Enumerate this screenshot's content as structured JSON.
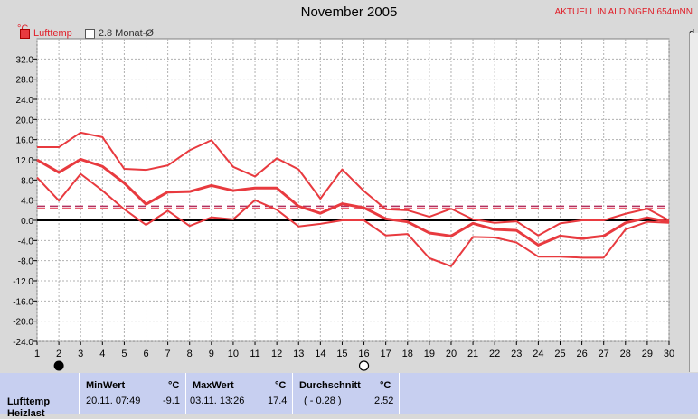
{
  "header": {
    "title": "November 2005",
    "station": "AKTUELL IN ALDINGEN 654mNN",
    "y_unit": "°C",
    "right_clip": "d"
  },
  "legend": {
    "item1": "Lufttemp",
    "item2": "2.8 Monat-Ø"
  },
  "colors": {
    "series": "#e83a3f",
    "avg_line1": "#b23060",
    "avg_line2": "#e86070",
    "zero_line": "#000000",
    "grid": "#b0b0b0",
    "panel": "#c7cff0"
  },
  "chart_data": {
    "type": "line",
    "xlim": [
      1,
      30
    ],
    "ylim": [
      -24,
      36
    ],
    "x_ticks": [
      "1",
      "2",
      "3",
      "4",
      "5",
      "6",
      "7",
      "8",
      "9",
      "10",
      "11",
      "12",
      "13",
      "14",
      "15",
      "16",
      "17",
      "18",
      "19",
      "20",
      "21",
      "22",
      "23",
      "24",
      "25",
      "26",
      "27",
      "28",
      "29",
      "30"
    ],
    "y_ticks": [
      "32.0",
      "28.0",
      "24.0",
      "20.0",
      "16.0",
      "12.0",
      "8.0",
      "4.0",
      "0.0",
      "-4.0",
      "-8.0",
      "-12.0",
      "-16.0",
      "-20.0",
      "-24.0"
    ],
    "y_tick_values": [
      32,
      28,
      24,
      20,
      16,
      12,
      8,
      4,
      0,
      -4,
      -8,
      -12,
      -16,
      -20,
      -24
    ],
    "moon_markers": [
      {
        "day": 2,
        "kind": "new-moon"
      },
      {
        "day": 16,
        "kind": "full-moon"
      }
    ],
    "reference_lines": [
      {
        "y": 2.8,
        "style": "dashed"
      },
      {
        "y": 2.4,
        "style": "dashed"
      },
      {
        "y": 0,
        "style": "solid"
      }
    ],
    "series": [
      {
        "role": "max",
        "x": [
          1,
          2,
          3,
          4,
          5,
          6,
          7,
          8,
          9,
          10,
          11,
          12,
          13,
          14,
          15,
          16,
          17,
          18,
          19,
          20,
          21,
          22,
          23,
          24,
          25,
          26,
          27,
          28,
          29,
          30
        ],
        "values": [
          14.5,
          14.5,
          17.4,
          16.5,
          10.2,
          10.0,
          10.9,
          13.9,
          15.9,
          10.6,
          8.7,
          12.3,
          10.1,
          4.3,
          10.1,
          5.8,
          2.2,
          2.0,
          0.7,
          2.3,
          0.2,
          -0.5,
          -0.2,
          -3.0,
          -0.6,
          0.0,
          0.0,
          1.3,
          2.3,
          0.0
        ]
      },
      {
        "role": "mean",
        "x": [
          1,
          2,
          3,
          4,
          5,
          6,
          7,
          8,
          9,
          10,
          11,
          12,
          13,
          14,
          15,
          16,
          17,
          18,
          19,
          20,
          21,
          22,
          23,
          24,
          25,
          26,
          27,
          28,
          29,
          30
        ],
        "values": [
          12.0,
          9.5,
          12.1,
          10.7,
          7.4,
          3.2,
          5.6,
          5.7,
          6.9,
          5.9,
          6.4,
          6.4,
          2.8,
          1.4,
          3.3,
          2.5,
          0.3,
          -0.3,
          -2.5,
          -3.1,
          -0.6,
          -1.8,
          -2.0,
          -4.9,
          -3.1,
          -3.6,
          -3.1,
          -0.5,
          0.5,
          -0.3
        ]
      },
      {
        "role": "min",
        "x": [
          1,
          2,
          3,
          4,
          5,
          6,
          7,
          8,
          9,
          10,
          11,
          12,
          13,
          14,
          15,
          16,
          17,
          18,
          19,
          20,
          21,
          22,
          23,
          24,
          25,
          26,
          27,
          28,
          29,
          30
        ],
        "values": [
          8.5,
          3.9,
          9.2,
          5.9,
          2.2,
          -0.9,
          1.9,
          -1.1,
          0.6,
          0.2,
          4.0,
          2.1,
          -1.2,
          -0.7,
          0.0,
          0.0,
          -3.0,
          -2.7,
          -7.5,
          -9.1,
          -3.3,
          -3.4,
          -4.4,
          -7.2,
          -7.2,
          -7.4,
          -7.4,
          -1.8,
          -0.3,
          -0.5
        ]
      }
    ]
  },
  "stats": {
    "row_label": "Lufttemp",
    "row_label2": "Heizlast",
    "min_header": "MinWert",
    "max_header": "MaxWert",
    "avg_header": "Durchschnitt",
    "unit": "°C",
    "min_datetime": "20.11.  07:49",
    "min_value": "-9.1",
    "max_datetime": "03.11.  13:26",
    "max_value": "17.4",
    "avg_delta": "( - 0.28 )",
    "avg_value": "2.52"
  }
}
